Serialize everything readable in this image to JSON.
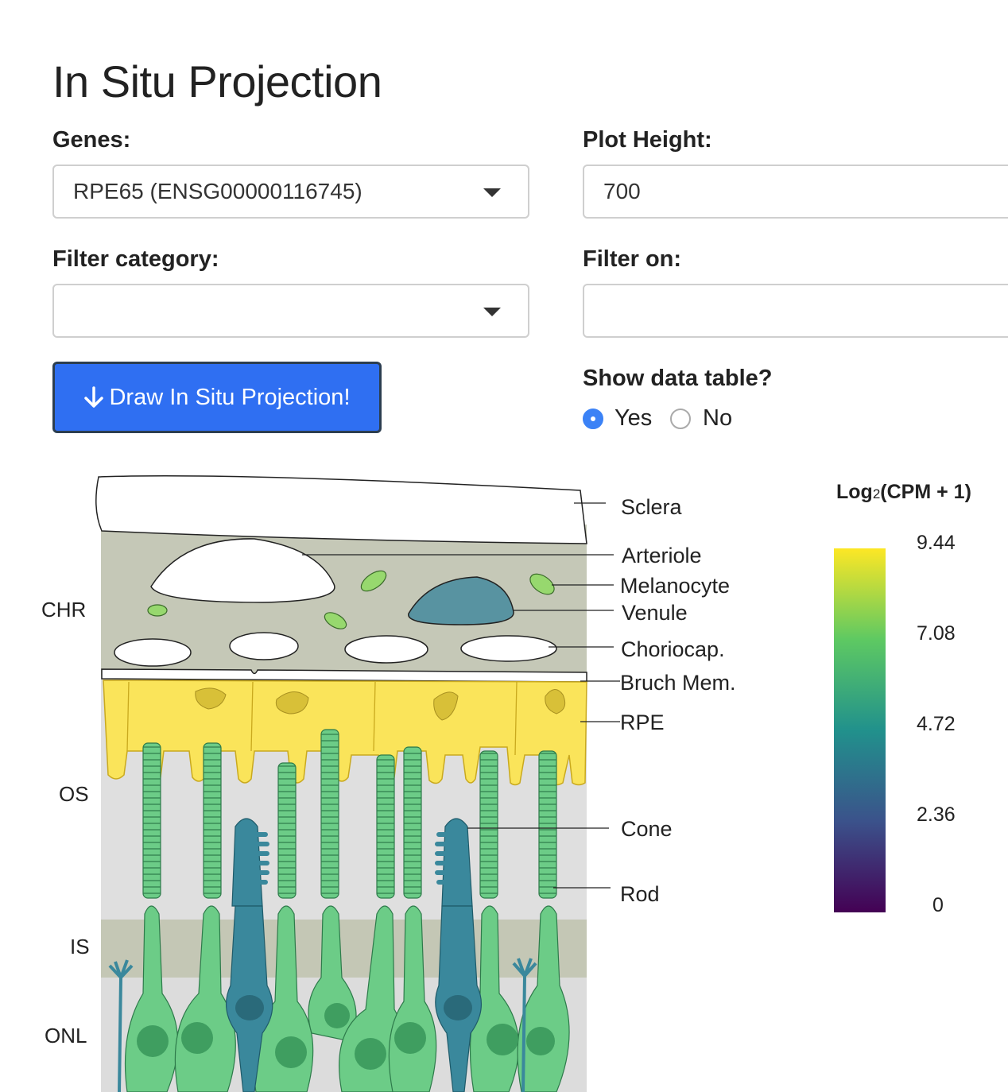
{
  "page": {
    "title": "In Situ Projection"
  },
  "form": {
    "genes_label": "Genes:",
    "genes_value": "RPE65 (ENSG00000116745)",
    "plot_height_label": "Plot Height:",
    "plot_height_value": "700",
    "filter_category_label": "Filter category:",
    "filter_category_value": "",
    "filter_on_label": "Filter on:",
    "filter_on_value": "",
    "draw_button_label": "Draw In Situ Projection!",
    "show_table_label": "Show data table?",
    "radio_yes": "Yes",
    "radio_no": "No",
    "radio_selected": "Yes"
  },
  "diagram": {
    "layers": [
      "CHR",
      "OS",
      "IS",
      "ONL"
    ],
    "structures": [
      "Sclera",
      "Arteriole",
      "Melanocyte",
      "Venule",
      "Choriocap.",
      "Bruch Mem.",
      "RPE",
      "Cone",
      "Rod"
    ],
    "colors": {
      "sclera": "#ffffff",
      "choroid_bg": "#c5c8b7",
      "venule": "#5893a1",
      "melanocyte": "#97d86e",
      "rpe": "#fae45a",
      "rod": "#6ccc87",
      "cone": "#3a889c",
      "os_bg": "#dfdfdf",
      "is_bg": "#c4c7b5"
    }
  },
  "legend": {
    "title_prefix": "Log",
    "title_sub": "2",
    "title_suffix": "(CPM + 1)",
    "ticks": [
      "9.44",
      "7.08",
      "4.72",
      "2.36",
      "0"
    ],
    "colormap": [
      "#440154",
      "#3b528b",
      "#21918c",
      "#5ec962",
      "#fde725"
    ]
  }
}
